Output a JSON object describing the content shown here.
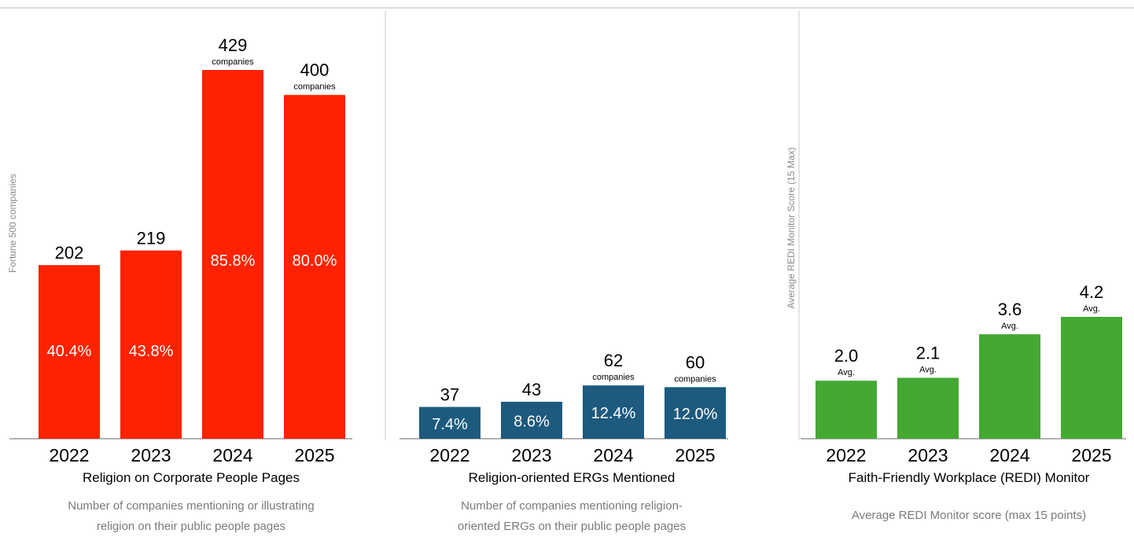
{
  "chart_data": [
    {
      "type": "bar",
      "title": "Religion on Corporate People Pages",
      "subtitle": [
        "Number of companies mentioning or illustrating",
        "religion on their public people pages"
      ],
      "ylabel": "Fortune 500 companies",
      "categories": [
        "2022",
        "2023",
        "2024",
        "2025"
      ],
      "values": [
        202,
        219,
        429,
        400
      ],
      "value_labels": [
        "202",
        "219",
        "429",
        "400"
      ],
      "value_notes": [
        "",
        "",
        "companies",
        "companies"
      ],
      "percent_labels": [
        "40.4%",
        "43.8%",
        "85.8%",
        "80.0%"
      ],
      "ylim": [
        0,
        500
      ],
      "color": "#ff2200"
    },
    {
      "type": "bar",
      "title": "Religion-oriented ERGs Mentioned",
      "subtitle": [
        "Number of companies mentioning religion-",
        "oriented ERGs on their public people pages"
      ],
      "ylabel": "",
      "categories": [
        "2022",
        "2023",
        "2024",
        "2025"
      ],
      "values": [
        37,
        43,
        62,
        60
      ],
      "value_labels": [
        "37",
        "43",
        "62",
        "60"
      ],
      "value_notes": [
        "",
        "",
        "companies",
        "companies"
      ],
      "percent_labels": [
        "7.4%",
        "8.6%",
        "12.4%",
        "12.0%"
      ],
      "ylim": [
        0,
        500
      ],
      "color": "#1d5a7e"
    },
    {
      "type": "bar",
      "title": "Faith-Friendly Workplace (REDI) Monitor",
      "subtitle": [
        "Average REDI Monitor score (max 15 points)"
      ],
      "ylabel": "Average REDI Monitor Score (15 Max)",
      "categories": [
        "2022",
        "2023",
        "2024",
        "2025"
      ],
      "values": [
        2.0,
        2.1,
        3.6,
        4.2
      ],
      "value_labels": [
        "2.0",
        "2.1",
        "3.6",
        "4.2"
      ],
      "value_notes": [
        "Avg.",
        "Avg.",
        "Avg.",
        "Avg."
      ],
      "percent_labels": [
        "",
        "",
        "",
        ""
      ],
      "ylim": [
        0,
        15
      ],
      "color": "#44a832"
    }
  ]
}
